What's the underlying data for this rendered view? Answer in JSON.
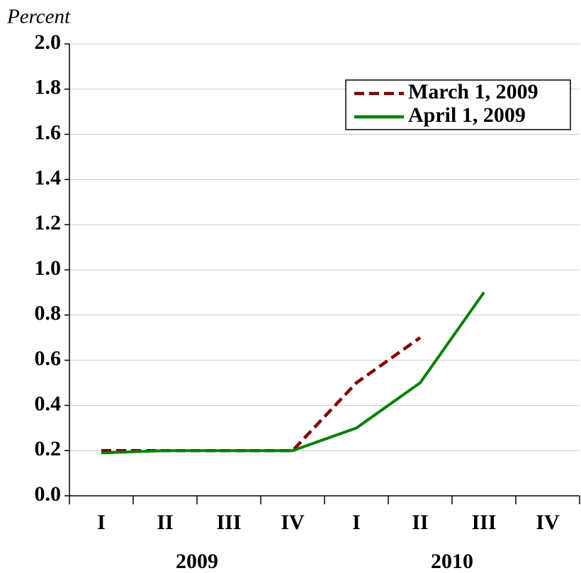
{
  "chart_data": {
    "type": "line",
    "y_axis_label": "Percent",
    "categories": [
      "I",
      "II",
      "III",
      "IV",
      "I",
      "II",
      "III",
      "IV"
    ],
    "year_labels": [
      "2009",
      "2010"
    ],
    "series": [
      {
        "name": "March 1, 2009",
        "color": "#800000",
        "dashed": true,
        "values": [
          0.2,
          0.2,
          0.2,
          0.2,
          0.5,
          0.7,
          null,
          null
        ]
      },
      {
        "name": "April 1, 2009",
        "color": "#008000",
        "dashed": false,
        "values": [
          0.19,
          0.2,
          0.2,
          0.2,
          0.3,
          0.5,
          0.9,
          null
        ]
      }
    ],
    "ylim": [
      0,
      2
    ],
    "yticks": [
      {
        "value": 0,
        "label": "0.0"
      },
      0.2,
      0.4,
      0.6,
      0.8,
      {
        "value": 1,
        "label": "1.0"
      },
      1.2,
      1.4,
      1.6,
      1.8,
      {
        "value": 2,
        "label": "2.0"
      }
    ],
    "grid": true,
    "legend": "top-right"
  }
}
